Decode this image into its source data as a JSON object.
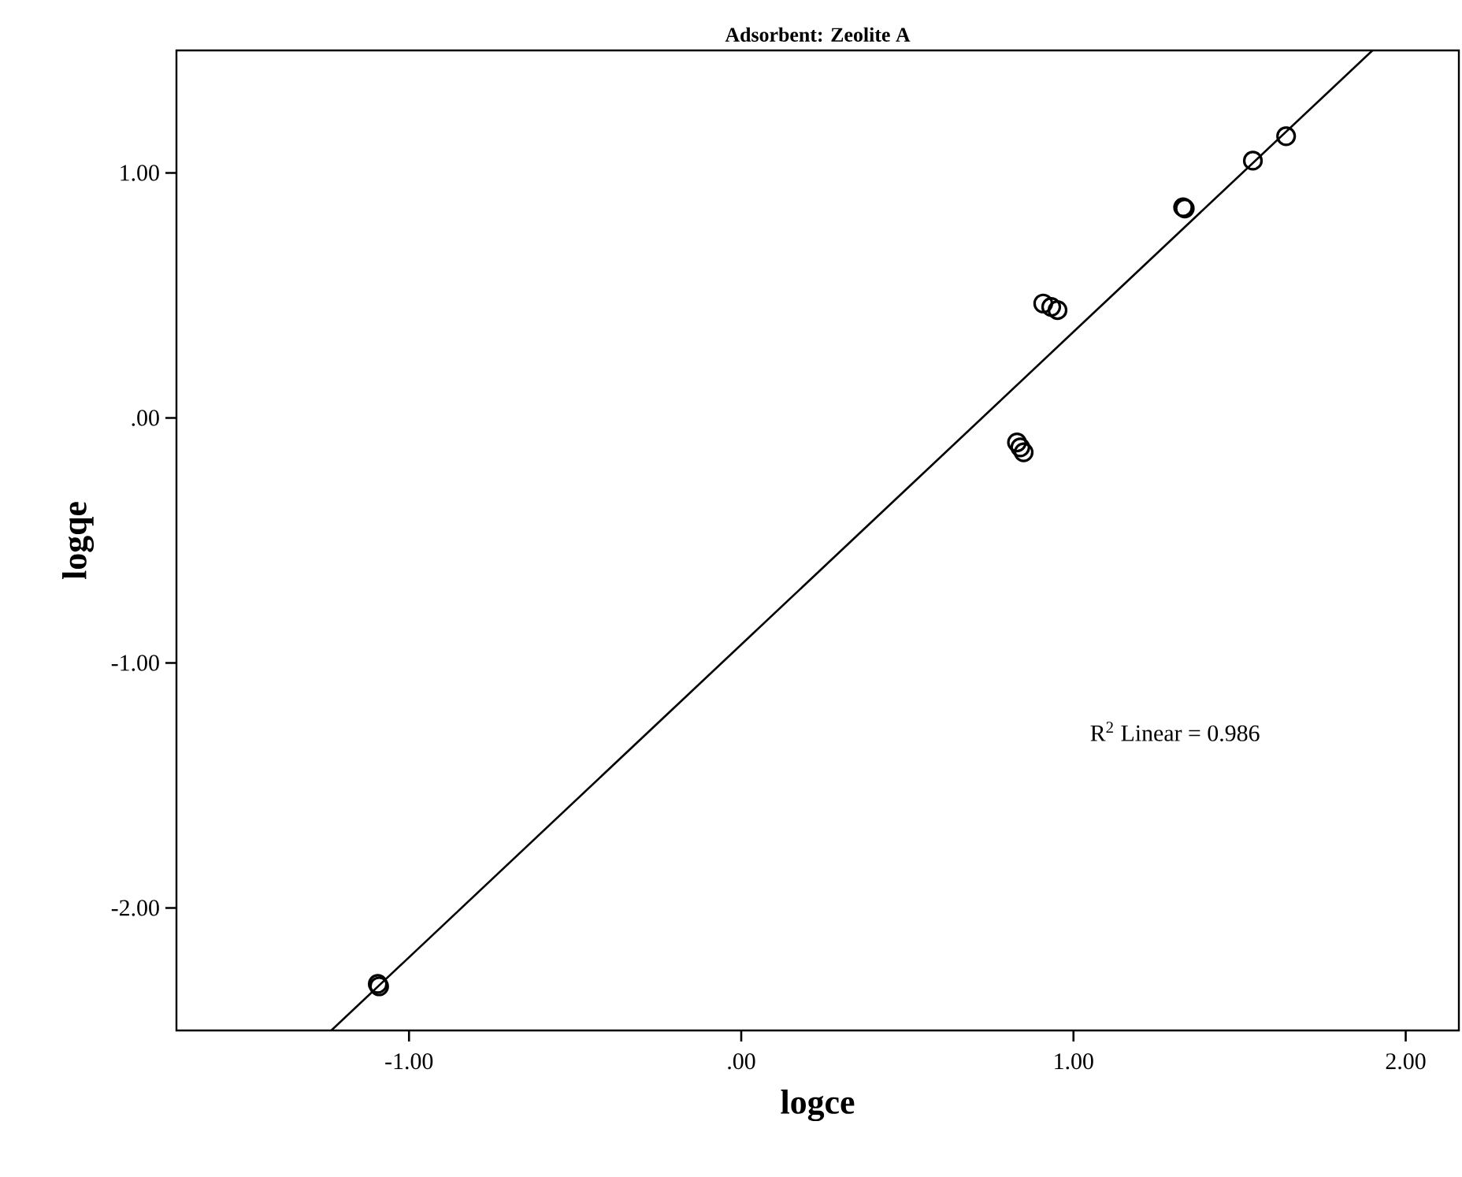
{
  "chart_data": {
    "type": "scatter",
    "title": "Adsorbent: Zeolite A",
    "xlabel": "logce",
    "ylabel": "logqe",
    "xlim": [
      -1.7,
      2.16
    ],
    "ylim": [
      -2.5,
      1.5
    ],
    "xticks": [
      {
        "value": -1,
        "label": "-1.00"
      },
      {
        "value": 0,
        "label": ".00"
      },
      {
        "value": 1,
        "label": "1.00"
      },
      {
        "value": 2,
        "label": "2.00"
      }
    ],
    "yticks": [
      {
        "value": -2,
        "label": "-2.00"
      },
      {
        "value": -1,
        "label": "-1.00"
      },
      {
        "value": 0,
        "label": ".00"
      },
      {
        "value": 1,
        "label": "1.00"
      }
    ],
    "marker": "circle",
    "legend": false,
    "annotations": [
      "R$^{2}$ Linear = 0.986"
    ],
    "series": [
      {
        "color": "#000000",
        "x": [
          -1.094,
          -1.09,
          0.909,
          0.933,
          0.952,
          0.83,
          0.84,
          0.85,
          1.33,
          1.335,
          1.54,
          1.64
        ],
        "values": [
          -2.31,
          -2.32,
          0.467,
          0.453,
          0.44,
          -0.1,
          -0.12,
          -0.14,
          0.86,
          0.855,
          1.05,
          1.15
        ]
      },
      {
        "type": "line",
        "color": "#000000",
        "marker": "none",
        "x": [
          -1.234,
          1.9
        ],
        "values": [
          -2.5,
          1.5
        ]
      }
    ]
  }
}
